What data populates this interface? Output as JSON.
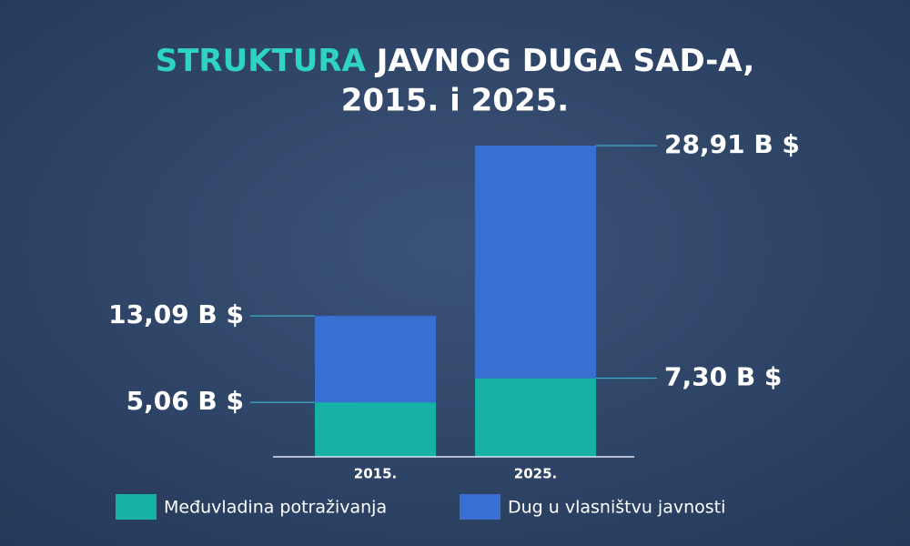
{
  "chart_data": {
    "type": "stacked_bar",
    "title": [
      "STRUKTURA",
      "JAVNOG DUGA SAD-A,",
      "2015. i 2025."
    ],
    "title_colors": [
      "#2ed3c6",
      "#ffffff",
      "#ffffff"
    ],
    "categories": [
      "2015.",
      "2025."
    ],
    "series": [
      {
        "name": "Međuvladina potraživanja",
        "color": "#16b2a8",
        "values": [
          5.06,
          7.3
        ],
        "value_labels": [
          "5,06 B $",
          "7,30 B $"
        ]
      },
      {
        "name": "Dug u vlasništvu javnosti",
        "color": "#3a6fd2",
        "values": [
          8.03,
          21.61
        ]
      }
    ],
    "totals": {
      "values": [
        13.09,
        28.91
      ],
      "value_labels": [
        "13,09 B $",
        "28,91 B $"
      ]
    }
  }
}
